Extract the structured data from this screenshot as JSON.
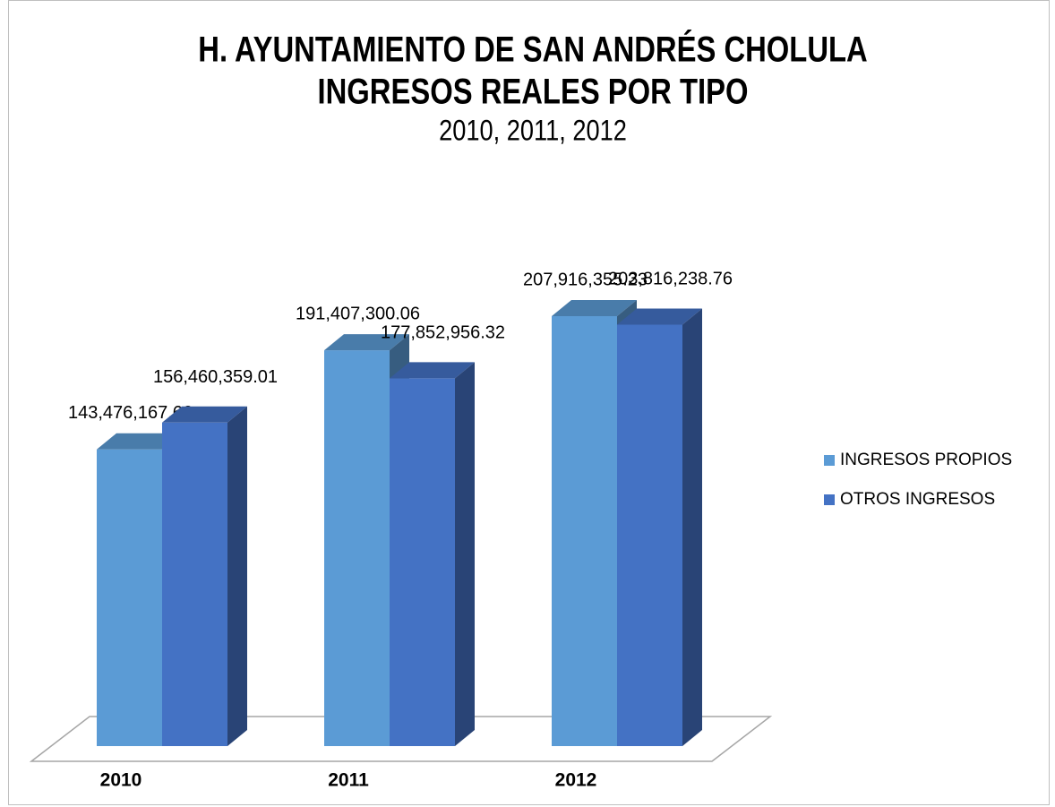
{
  "chart_data": {
    "type": "bar",
    "title": [
      "H. AYUNTAMIENTO DE SAN ANDRÉS CHOLULA",
      "INGRESOS REALES POR TIPO"
    ],
    "subtitle": "2010, 2011, 2012",
    "categories": [
      "2010",
      "2011",
      "2012"
    ],
    "series": [
      {
        "name": "INGRESOS PROPIOS",
        "color": "#5b9bd5",
        "values": [
          143476167.66,
          191407300.06,
          207916355.23
        ],
        "value_labels": [
          "143,476,167.66",
          "191,407,300.06",
          "207,916,355.23"
        ]
      },
      {
        "name": "OTROS INGRESOS",
        "color": "#4472c4",
        "values": [
          156460359.01,
          177852956.32,
          203816238.76
        ],
        "value_labels": [
          "156,460,359.01",
          "177,852,956.32",
          "203,816,238.76"
        ]
      }
    ]
  }
}
